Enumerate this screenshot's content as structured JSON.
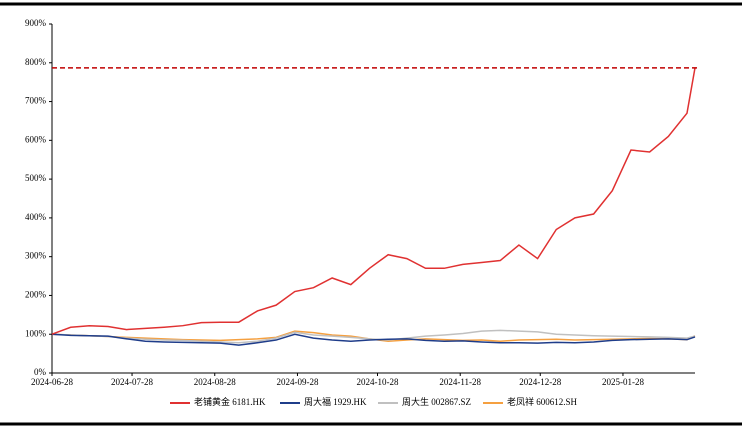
{
  "chart_data": {
    "type": "line",
    "x": [
      "2024-06-28",
      "2024-07-05",
      "2024-07-12",
      "2024-07-19",
      "2024-07-26",
      "2024-08-02",
      "2024-08-09",
      "2024-08-16",
      "2024-08-23",
      "2024-08-30",
      "2024-09-06",
      "2024-09-13",
      "2024-09-20",
      "2024-09-27",
      "2024-10-04",
      "2024-10-11",
      "2024-10-18",
      "2024-10-25",
      "2024-11-01",
      "2024-11-08",
      "2024-11-15",
      "2024-11-22",
      "2024-11-29",
      "2024-12-06",
      "2024-12-13",
      "2024-12-20",
      "2024-12-27",
      "2025-01-03",
      "2025-01-10",
      "2025-01-17",
      "2025-01-24",
      "2025-01-31",
      "2025-02-07",
      "2025-02-14",
      "2025-02-21",
      "2025-02-24"
    ],
    "xlim": [
      "2024-06-28",
      "2025-02-24"
    ],
    "xticks": [
      "2024-06-28",
      "2024-07-28",
      "2024-08-28",
      "2024-09-28",
      "2024-10-28",
      "2024-11-28",
      "2024-12-28",
      "2025-01-28"
    ],
    "ylim": [
      0,
      900
    ],
    "yticks": [
      {
        "value": 0,
        "label": "0%"
      },
      {
        "value": 100,
        "label": "100%"
      },
      {
        "value": 200,
        "label": "200%"
      },
      {
        "value": 300,
        "label": "300%"
      },
      {
        "value": 400,
        "label": "400%"
      },
      {
        "value": 500,
        "label": "500%"
      },
      {
        "value": 600,
        "label": "600%"
      },
      {
        "value": 700,
        "label": "700%"
      },
      {
        "value": 800,
        "label": "800%"
      },
      {
        "value": 900,
        "label": "900%"
      }
    ],
    "reference_line": {
      "value": 787,
      "color": "#c00000"
    },
    "series": [
      {
        "name": "老铺黄金 6181.HK",
        "color": "#e03131",
        "values": [
          100,
          118,
          122,
          120,
          112,
          115,
          118,
          122,
          130,
          131,
          131,
          160,
          175,
          210,
          220,
          245,
          228,
          270,
          305,
          295,
          270,
          270,
          280,
          285,
          290,
          330,
          295,
          370,
          400,
          410,
          470,
          575,
          570,
          610,
          670,
          787
        ]
      },
      {
        "name": "周大福 1929.HK",
        "color": "#1f3d8a",
        "values": [
          100,
          97,
          96,
          95,
          88,
          82,
          80,
          79,
          78,
          77,
          72,
          78,
          85,
          100,
          90,
          85,
          82,
          85,
          87,
          88,
          84,
          82,
          83,
          80,
          78,
          78,
          77,
          79,
          78,
          80,
          84,
          86,
          87,
          88,
          86,
          93
        ]
      },
      {
        "name": "周大生 002867.SZ",
        "color": "#c0c0c0",
        "values": [
          100,
          98,
          96,
          94,
          90,
          87,
          85,
          84,
          82,
          80,
          78,
          82,
          90,
          105,
          98,
          95,
          92,
          88,
          85,
          90,
          95,
          98,
          102,
          108,
          110,
          108,
          106,
          100,
          98,
          96,
          95,
          94,
          93,
          92,
          90,
          95
        ]
      },
      {
        "name": "老凤祥 600612.SH",
        "color": "#f5a040",
        "values": [
          100,
          98,
          96,
          94,
          92,
          90,
          88,
          86,
          85,
          84,
          86,
          88,
          92,
          108,
          104,
          98,
          95,
          88,
          82,
          85,
          88,
          86,
          84,
          85,
          82,
          85,
          86,
          87,
          85,
          86,
          87,
          88,
          89,
          88,
          86,
          96
        ]
      }
    ]
  }
}
